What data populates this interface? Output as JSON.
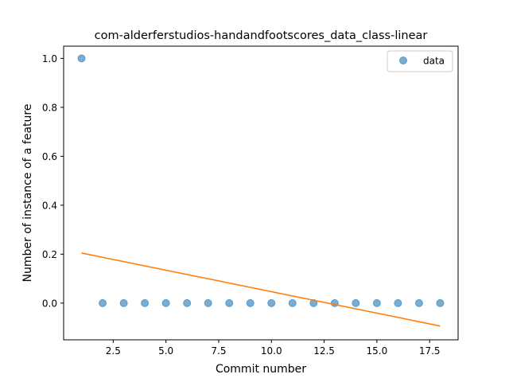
{
  "chart_data": {
    "type": "scatter",
    "title": "com-alderferstudios-handandfootscores_data_class-linear",
    "xlabel": "Commit number",
    "ylabel": "Number of instance of a feature",
    "xlim": [
      0.15,
      18.85
    ],
    "ylim": [
      -0.15,
      1.05
    ],
    "xticks": [
      2.5,
      5.0,
      7.5,
      10.0,
      12.5,
      15.0,
      17.5
    ],
    "xtick_labels": [
      "2.5",
      "5.0",
      "7.5",
      "10.0",
      "12.5",
      "15.0",
      "17.5"
    ],
    "yticks": [
      0.0,
      0.2,
      0.4,
      0.6,
      0.8,
      1.0
    ],
    "ytick_labels": [
      "0.0",
      "0.2",
      "0.4",
      "0.6",
      "0.8",
      "1.0"
    ],
    "grid": false,
    "legend_position": "top-right",
    "series": [
      {
        "name": "data",
        "kind": "scatter",
        "color": "#1f77b4",
        "x": [
          1,
          2,
          3,
          4,
          5,
          6,
          7,
          8,
          9,
          10,
          11,
          12,
          13,
          14,
          15,
          16,
          17,
          18
        ],
        "y": [
          1,
          0,
          0,
          0,
          0,
          0,
          0,
          0,
          0,
          0,
          0,
          0,
          0,
          0,
          0,
          0,
          0,
          0
        ]
      },
      {
        "kind": "line",
        "color": "#ff7f0e",
        "x": [
          1,
          18
        ],
        "y": [
          0.2047,
          -0.0936
        ]
      }
    ]
  }
}
